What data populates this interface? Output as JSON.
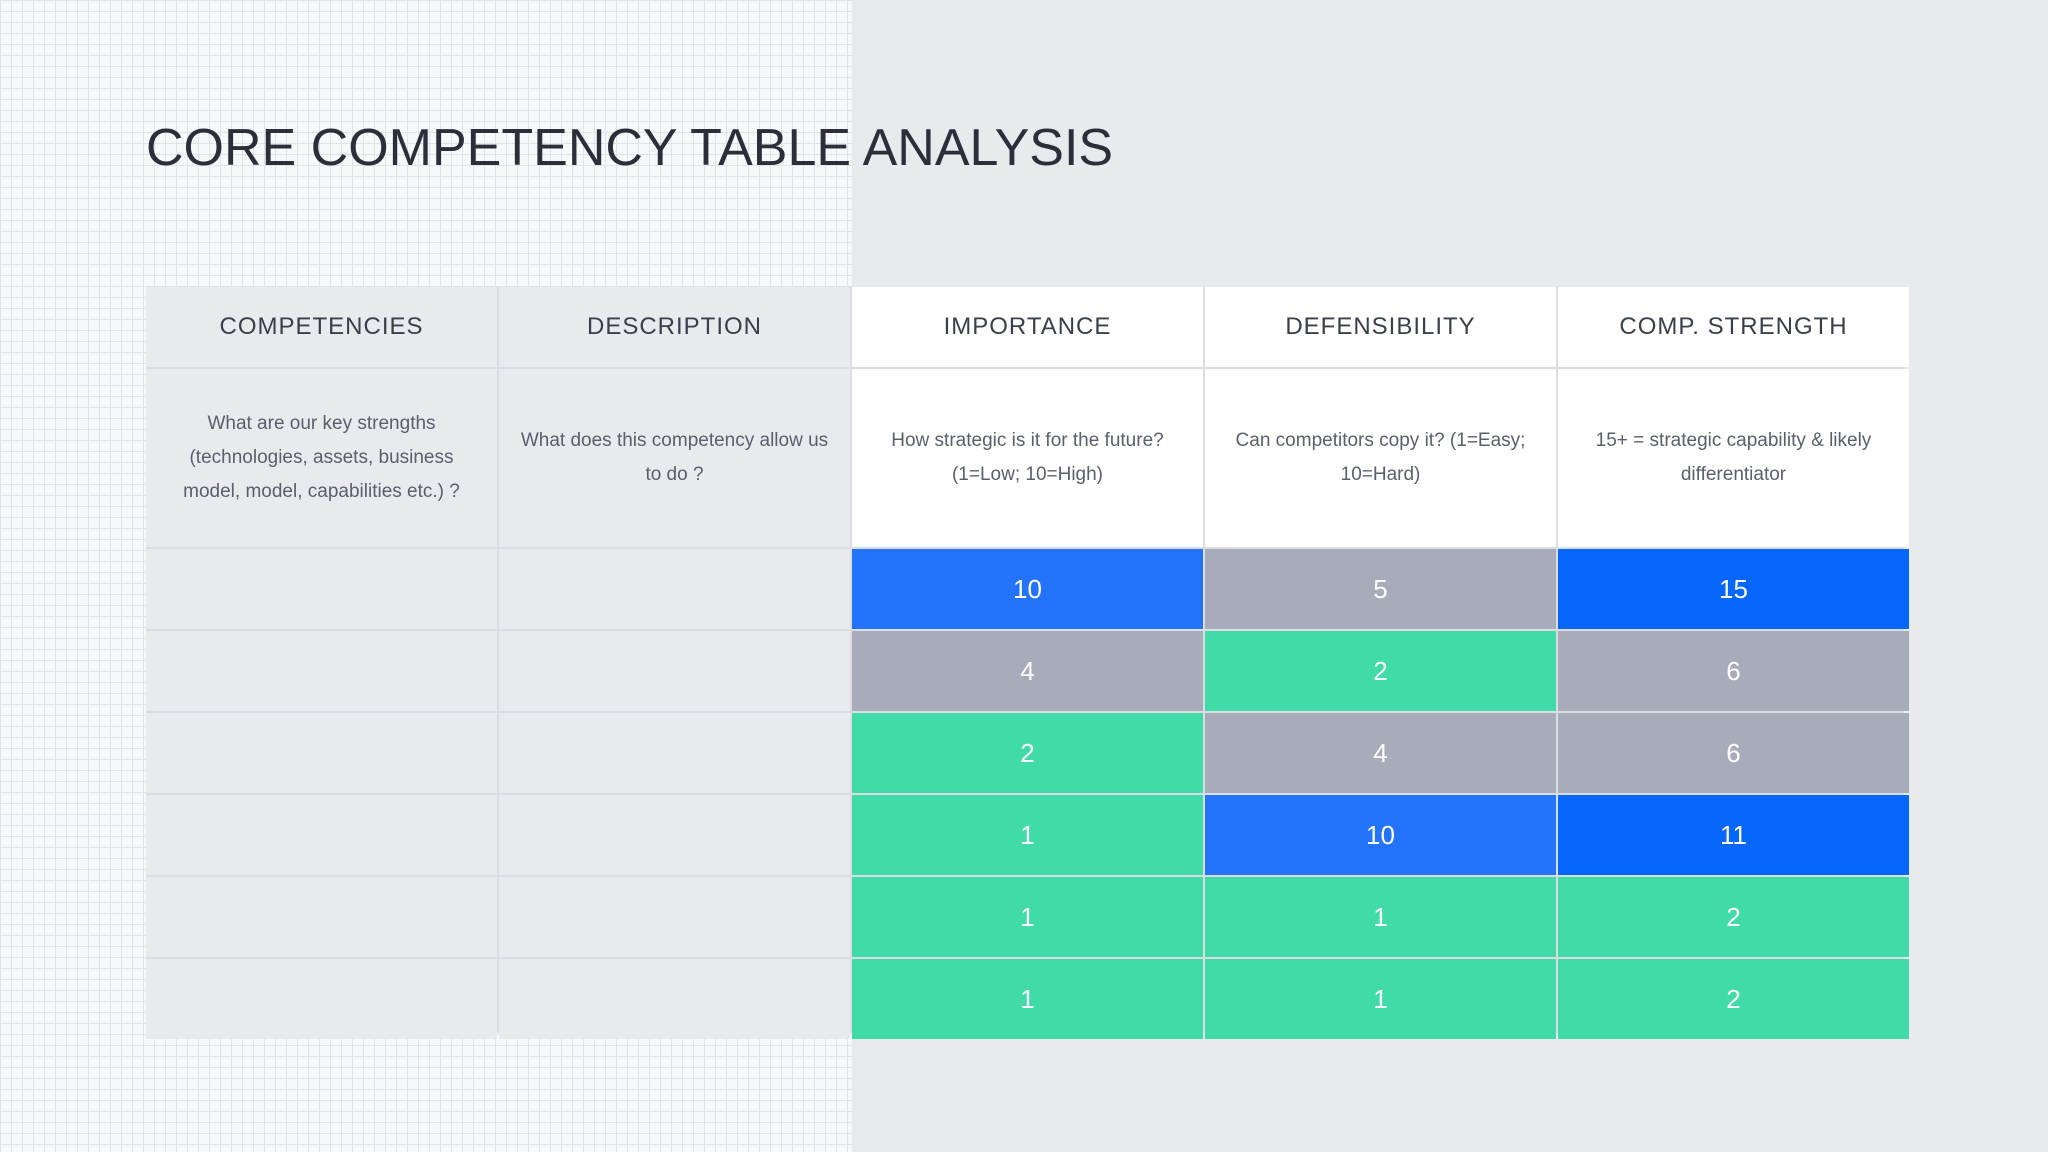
{
  "title": "CORE COMPETENCY TABLE ANALYSIS",
  "table": {
    "headers": [
      "COMPETENCIES",
      "DESCRIPTION",
      "IMPORTANCE",
      "DEFENSIBILITY",
      "COMP. STRENGTH"
    ],
    "descriptions": [
      "What are our key strengths (technologies, assets, business model, model, capabilities etc.) ?",
      "What does this competency allow us to do ?",
      "How strategic is it for the future? (1=Low; 10=High)",
      "Can competitors copy it? (1=Easy; 10=Hard)",
      "15+ = strategic capability & likely differentiator"
    ],
    "rows": [
      {
        "importance": "10",
        "defensibility": "5",
        "strength": "15"
      },
      {
        "importance": "4",
        "defensibility": "2",
        "strength": "6"
      },
      {
        "importance": "2",
        "defensibility": "4",
        "strength": "6"
      },
      {
        "importance": "1",
        "defensibility": "10",
        "strength": "11"
      },
      {
        "importance": "1",
        "defensibility": "1",
        "strength": "2"
      },
      {
        "importance": "1",
        "defensibility": "1",
        "strength": "2"
      }
    ]
  },
  "colors": {
    "blue": "#2374fb",
    "strong_blue": "#0566fc",
    "gray": "#a8abba",
    "green": "#41dba8"
  }
}
